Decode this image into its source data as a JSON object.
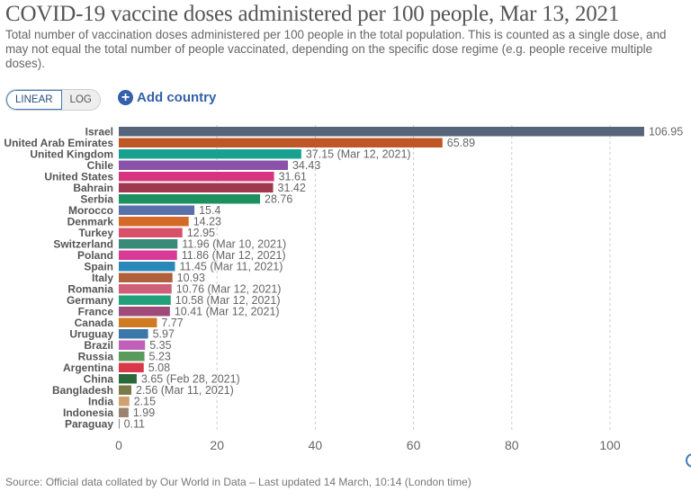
{
  "header": {
    "title": "COVID-19 vaccine doses administered per 100 people, Mar 13, 2021",
    "subtitle": "Total number of vaccination doses administered per 100 people in the total population. This is counted as a single dose, and may not equal the total number of people vaccinated, depending on the specific dose regime (e.g. people receive multiple doses)."
  },
  "controls": {
    "linear": "LINEAR",
    "log": "LOG",
    "add_country": "Add country",
    "active_scale": "linear"
  },
  "footer": {
    "source": "Source: Official data collated by Our World in Data – Last updated 14 March, 10:14 (London time)"
  },
  "chart_data": {
    "type": "bar",
    "orientation": "horizontal",
    "title": "COVID-19 vaccine doses administered per 100 people, Mar 13, 2021",
    "xlim": [
      0,
      110
    ],
    "xticks": [
      0,
      20,
      40,
      60,
      80,
      100
    ],
    "grid": true,
    "bars": [
      {
        "category": "Israel",
        "value": 106.95,
        "label": "106.95",
        "color": "#56657a"
      },
      {
        "category": "United Arab Emirates",
        "value": 65.89,
        "label": "65.89",
        "color": "#c05525"
      },
      {
        "category": "United Kingdom",
        "value": 37.15,
        "label": "37.15 (Mar 12, 2021)",
        "color": "#18a090"
      },
      {
        "category": "Chile",
        "value": 34.43,
        "label": "34.43",
        "color": "#8a52a8"
      },
      {
        "category": "United States",
        "value": 31.61,
        "label": "31.61",
        "color": "#d8337e"
      },
      {
        "category": "Bahrain",
        "value": 31.42,
        "label": "31.42",
        "color": "#a0394f"
      },
      {
        "category": "Serbia",
        "value": 28.76,
        "label": "28.76",
        "color": "#1e9060"
      },
      {
        "category": "Morocco",
        "value": 15.4,
        "label": "15.4",
        "color": "#5a70a8"
      },
      {
        "category": "Denmark",
        "value": 14.23,
        "label": "14.23",
        "color": "#d46a28"
      },
      {
        "category": "Turkey",
        "value": 12.95,
        "label": "12.95",
        "color": "#d9506a"
      },
      {
        "category": "Switzerland",
        "value": 11.96,
        "label": "11.96 (Mar 10, 2021)",
        "color": "#3a8a78"
      },
      {
        "category": "Poland",
        "value": 11.86,
        "label": "11.86 (Mar 12, 2021)",
        "color": "#d83a98"
      },
      {
        "category": "Spain",
        "value": 11.45,
        "label": "11.45 (Mar 11, 2021)",
        "color": "#2a88b8"
      },
      {
        "category": "Italy",
        "value": 10.93,
        "label": "10.93",
        "color": "#b0603a"
      },
      {
        "category": "Romania",
        "value": 10.76,
        "label": "10.76 (Mar 12, 2021)",
        "color": "#d0607a"
      },
      {
        "category": "Germany",
        "value": 10.58,
        "label": "10.58 (Mar 12, 2021)",
        "color": "#22a07a"
      },
      {
        "category": "France",
        "value": 10.41,
        "label": "10.41 (Mar 12, 2021)",
        "color": "#a04a7a"
      },
      {
        "category": "Canada",
        "value": 7.77,
        "label": "7.77",
        "color": "#d07a22"
      },
      {
        "category": "Uruguay",
        "value": 5.97,
        "label": "5.97",
        "color": "#3a78a8"
      },
      {
        "category": "Brazil",
        "value": 5.35,
        "label": "5.35",
        "color": "#c060b8"
      },
      {
        "category": "Russia",
        "value": 5.23,
        "label": "5.23",
        "color": "#5a9a5a"
      },
      {
        "category": "Argentina",
        "value": 5.08,
        "label": "5.08",
        "color": "#d83848"
      },
      {
        "category": "China",
        "value": 3.65,
        "label": "3.65 (Feb 28, 2021)",
        "color": "#2a6a3a"
      },
      {
        "category": "Bangladesh",
        "value": 2.56,
        "label": "2.56 (Mar 11, 2021)",
        "color": "#7a7a48"
      },
      {
        "category": "India",
        "value": 2.15,
        "label": "2.15",
        "color": "#d0a070"
      },
      {
        "category": "Indonesia",
        "value": 1.99,
        "label": "1.99",
        "color": "#9a8470"
      },
      {
        "category": "Paraguay",
        "value": 0.11,
        "label": "0.11",
        "color": "#888888"
      }
    ]
  }
}
